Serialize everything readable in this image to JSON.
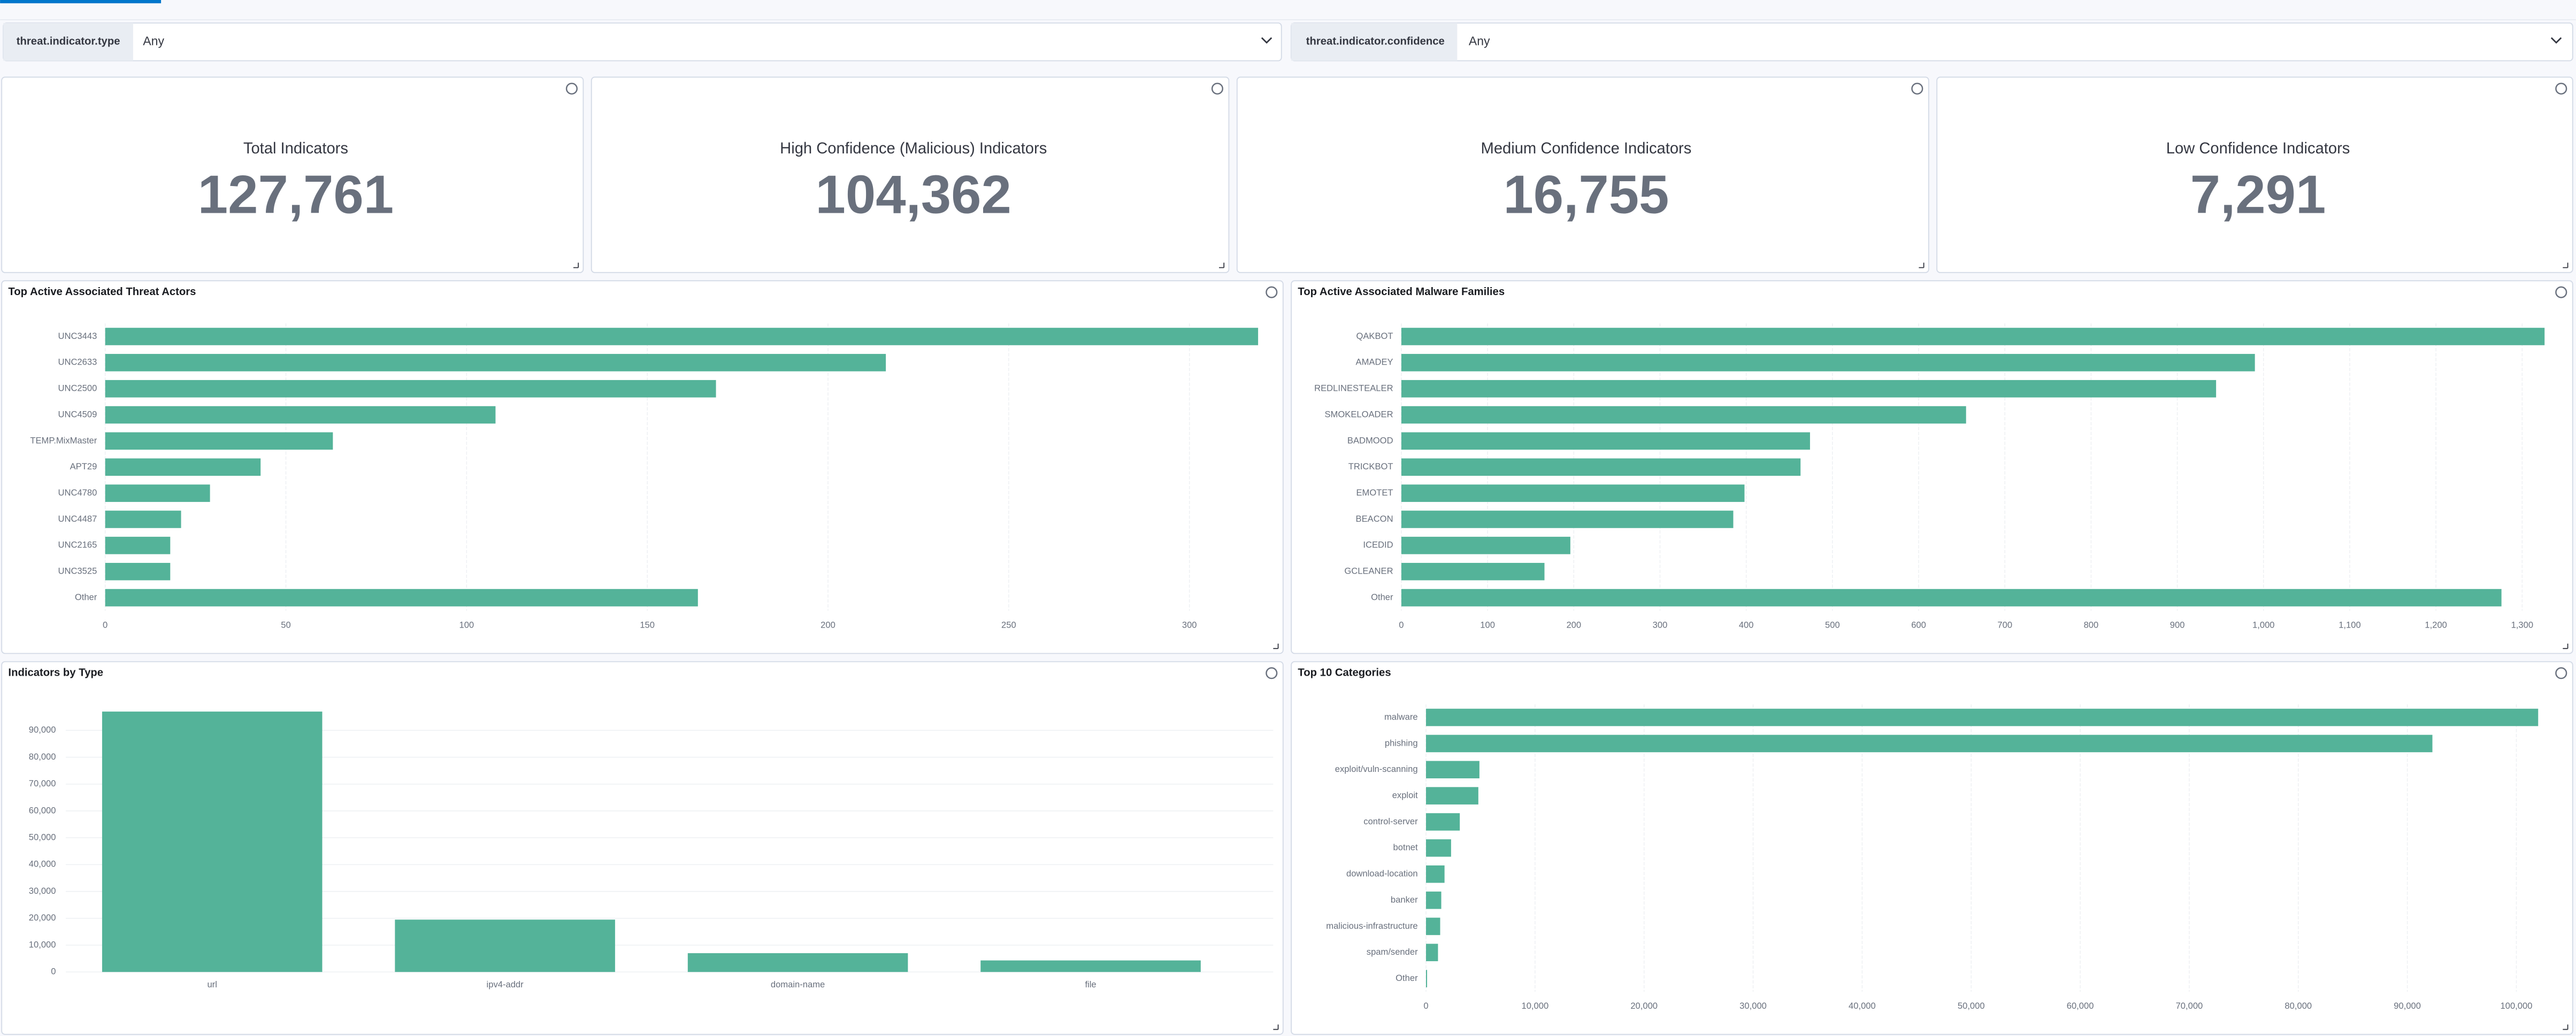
{
  "filters": [
    {
      "field": "threat.indicator.type",
      "value": "Any"
    },
    {
      "field": "threat.indicator.confidence",
      "value": "Any"
    }
  ],
  "metrics": [
    {
      "label": "Total Indicators",
      "value": "127,761",
      "color": "#343741"
    },
    {
      "label": "High Confidence (Malicious) Indicators",
      "value": "104,362",
      "color": "#cc5642"
    },
    {
      "label": "Medium Confidence Indicators",
      "value": "16,755",
      "color": "#d6bf57"
    },
    {
      "label": "Low Confidence Indicators",
      "value": "7,291",
      "color": "#209280"
    }
  ],
  "chart_data": [
    {
      "type": "bar",
      "orientation": "horizontal",
      "title": "Top Active Associated Threat Actors",
      "categories": [
        "UNC3443",
        "UNC2633",
        "UNC2500",
        "UNC4509",
        "TEMP.MixMaster",
        "APT29",
        "UNC4780",
        "UNC4487",
        "UNC2165",
        "UNC3525",
        "Other"
      ],
      "values": [
        319,
        216,
        169,
        108,
        63,
        43,
        29,
        21,
        18,
        18,
        164
      ],
      "color": "#54b399",
      "xlim": [
        0,
        320
      ],
      "xticks": [
        0,
        50,
        100,
        150,
        200,
        250,
        300
      ],
      "grid": true
    },
    {
      "type": "bar",
      "orientation": "horizontal",
      "title": "Top Active Associated Malware Families",
      "categories": [
        "QAKBOT",
        "AMADEY",
        "REDLINESTEALER",
        "SMOKELOADER",
        "BADMOOD",
        "TRICKBOT",
        "EMOTET",
        "BEACON",
        "ICEDID",
        "GCLEANER",
        "Other"
      ],
      "values": [
        1326,
        990,
        945,
        655,
        474,
        463,
        398,
        385,
        196,
        166,
        1276
      ],
      "color": "#54b399",
      "xlim": [
        0,
        1330
      ],
      "xticks": [
        0,
        100,
        200,
        300,
        400,
        500,
        600,
        700,
        800,
        900,
        {
          "value": 1000,
          "label": "1,000"
        },
        {
          "value": 1100,
          "label": "1,100"
        },
        {
          "value": 1200,
          "label": "1,200"
        },
        {
          "value": 1300,
          "label": "1,300"
        }
      ],
      "grid": true
    },
    {
      "type": "bar",
      "orientation": "vertical",
      "title": "Indicators by Type",
      "categories": [
        "url",
        "ipv4-addr",
        "domain-name",
        "file"
      ],
      "values": [
        97000,
        19500,
        7000,
        4300
      ],
      "color": "#54b399",
      "ylim": [
        0,
        100000
      ],
      "yticks": [
        0,
        {
          "value": 10000,
          "label": "10,000"
        },
        {
          "value": 20000,
          "label": "20,000"
        },
        {
          "value": 30000,
          "label": "30,000"
        },
        {
          "value": 40000,
          "label": "40,000"
        },
        {
          "value": 50000,
          "label": "50,000"
        },
        {
          "value": 60000,
          "label": "60,000"
        },
        {
          "value": 70000,
          "label": "70,000"
        },
        {
          "value": 80000,
          "label": "80,000"
        },
        {
          "value": 90000,
          "label": "90,000"
        }
      ],
      "grid": true
    },
    {
      "type": "bar",
      "orientation": "horizontal",
      "title": "Top 10 Categories",
      "categories": [
        "malware",
        "phishing",
        "exploit/vuln-scanning",
        "exploit",
        "control-server",
        "botnet",
        "download-location",
        "banker",
        "malicious-infrastructure",
        "spam/sender",
        "Other"
      ],
      "values": [
        102000,
        92300,
        4900,
        4800,
        3100,
        2300,
        1700,
        1400,
        1300,
        1100,
        100
      ],
      "color": "#54b399",
      "xlim": [
        0,
        102000
      ],
      "xticks": [
        0,
        {
          "value": 10000,
          "label": "10,000"
        },
        {
          "value": 20000,
          "label": "20,000"
        },
        {
          "value": 30000,
          "label": "30,000"
        },
        {
          "value": 40000,
          "label": "40,000"
        },
        {
          "value": 50000,
          "label": "50,000"
        },
        {
          "value": 60000,
          "label": "60,000"
        },
        {
          "value": 70000,
          "label": "70,000"
        },
        {
          "value": 80000,
          "label": "80,000"
        },
        {
          "value": 90000,
          "label": "90,000"
        },
        {
          "value": 100000,
          "label": "100,000"
        }
      ],
      "grid": true
    }
  ]
}
